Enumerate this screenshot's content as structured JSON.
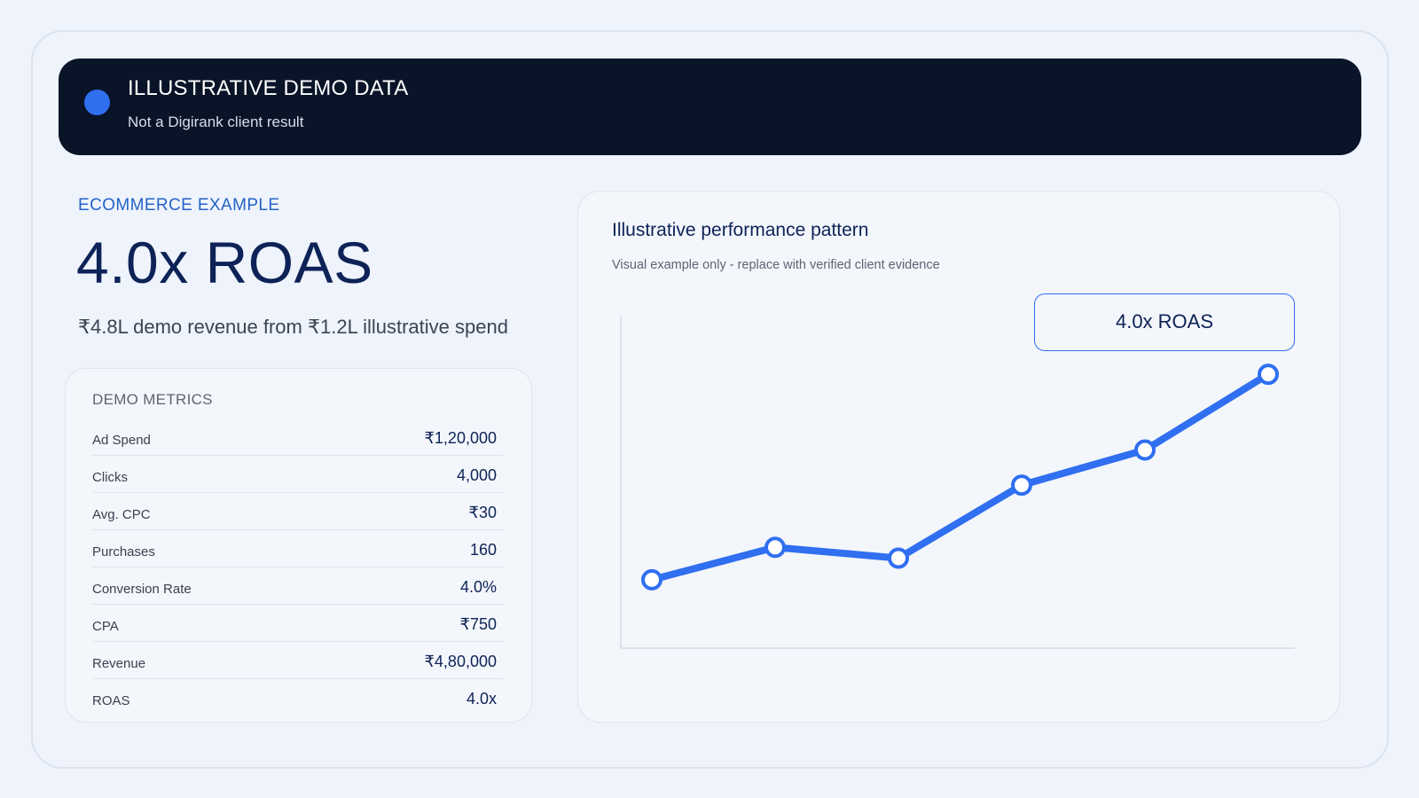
{
  "banner": {
    "title": "ILLUSTRATIVE DEMO DATA",
    "subtitle": "Not a Digirank client result"
  },
  "hero": {
    "eyebrow": "ECOMMERCE EXAMPLE",
    "headline": "4.0x ROAS",
    "subline": "₹4.8L demo revenue from ₹1.2L illustrative spend"
  },
  "metrics": {
    "title": "DEMO METRICS",
    "rows": [
      {
        "label": "Ad Spend",
        "value": "₹1,20,000"
      },
      {
        "label": "Clicks",
        "value": "4,000"
      },
      {
        "label": "Avg. CPC",
        "value": "₹30"
      },
      {
        "label": "Purchases",
        "value": "160"
      },
      {
        "label": "Conversion Rate",
        "value": "4.0%"
      },
      {
        "label": "CPA",
        "value": "₹750"
      },
      {
        "label": "Revenue",
        "value": "₹4,80,000"
      },
      {
        "label": "ROAS",
        "value": "4.0x"
      }
    ]
  },
  "chart": {
    "title": "Illustrative performance pattern",
    "subtitle": "Visual example only - replace with verified client evidence",
    "callout": "4.0x ROAS",
    "colors": {
      "line": "#2f6ff0",
      "axis": "#dde2ea"
    }
  },
  "chart_data": {
    "type": "line",
    "title": "Illustrative performance pattern",
    "xlabel": "",
    "ylabel": "",
    "x": [
      1,
      2,
      3,
      4,
      5,
      6
    ],
    "series": [
      {
        "values": [
          0.22,
          0.34,
          0.3,
          0.57,
          0.7,
          0.98
        ]
      }
    ],
    "ylim": [
      0,
      1
    ],
    "grid": false,
    "annotation": "4.0x ROAS"
  }
}
